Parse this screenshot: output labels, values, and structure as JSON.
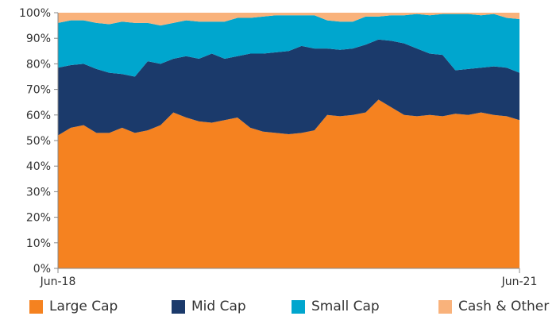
{
  "chart_data": {
    "type": "area",
    "stacked": true,
    "x_tick_labels": [
      "Jun-18",
      "Jun-21"
    ],
    "y_tick_labels": [
      "0%",
      "10%",
      "20%",
      "30%",
      "40%",
      "50%",
      "60%",
      "70%",
      "80%",
      "90%",
      "100%"
    ],
    "ylim": [
      0,
      100
    ],
    "grid": false,
    "legend_position": "bottom",
    "series": [
      {
        "name": "Large Cap",
        "color": "#F58220",
        "values": [
          52,
          55,
          56,
          53,
          53,
          55,
          53,
          54,
          56,
          61,
          59,
          57.5,
          57,
          58,
          59,
          55,
          53.5,
          53,
          52.5,
          53,
          54,
          60,
          59.5,
          60,
          61,
          66,
          63,
          60,
          59.5,
          60,
          59.5,
          60.5,
          60,
          61,
          60,
          59.5,
          58
        ]
      },
      {
        "name": "Mid Cap",
        "color": "#1B3A6B",
        "values": [
          26.5,
          24.5,
          24,
          25,
          23.5,
          21,
          22,
          27,
          24,
          21,
          24,
          24.5,
          27,
          24,
          24,
          29,
          30.5,
          31.5,
          32.5,
          34,
          32,
          26,
          26,
          26,
          26.5,
          23.5,
          26,
          28,
          26.5,
          24,
          24,
          17,
          18,
          17.5,
          19,
          19,
          18.5
        ]
      },
      {
        "name": "Small Cap",
        "color": "#00A6CE",
        "values": [
          17.5,
          17.5,
          17,
          18,
          19,
          20.5,
          21,
          15,
          15,
          14,
          14,
          14.5,
          12.5,
          14.5,
          15,
          14,
          14.5,
          14.5,
          14,
          12,
          13,
          11,
          11,
          10.5,
          11,
          9,
          10,
          11,
          13.5,
          15,
          16,
          22,
          21.5,
          20.5,
          20.5,
          19.5,
          21
        ]
      },
      {
        "name": "Cash & Other",
        "color": "#F9B27B",
        "values": [
          4,
          3,
          3,
          4,
          4.5,
          3.5,
          4,
          4,
          5,
          4,
          3,
          3.5,
          3.5,
          3.5,
          2,
          2,
          1.5,
          1,
          1,
          1,
          1,
          3,
          3.5,
          3.5,
          1.5,
          1.5,
          1,
          1,
          0.5,
          1,
          0.5,
          0.5,
          0.5,
          1,
          0.5,
          2,
          2.5
        ]
      }
    ]
  }
}
